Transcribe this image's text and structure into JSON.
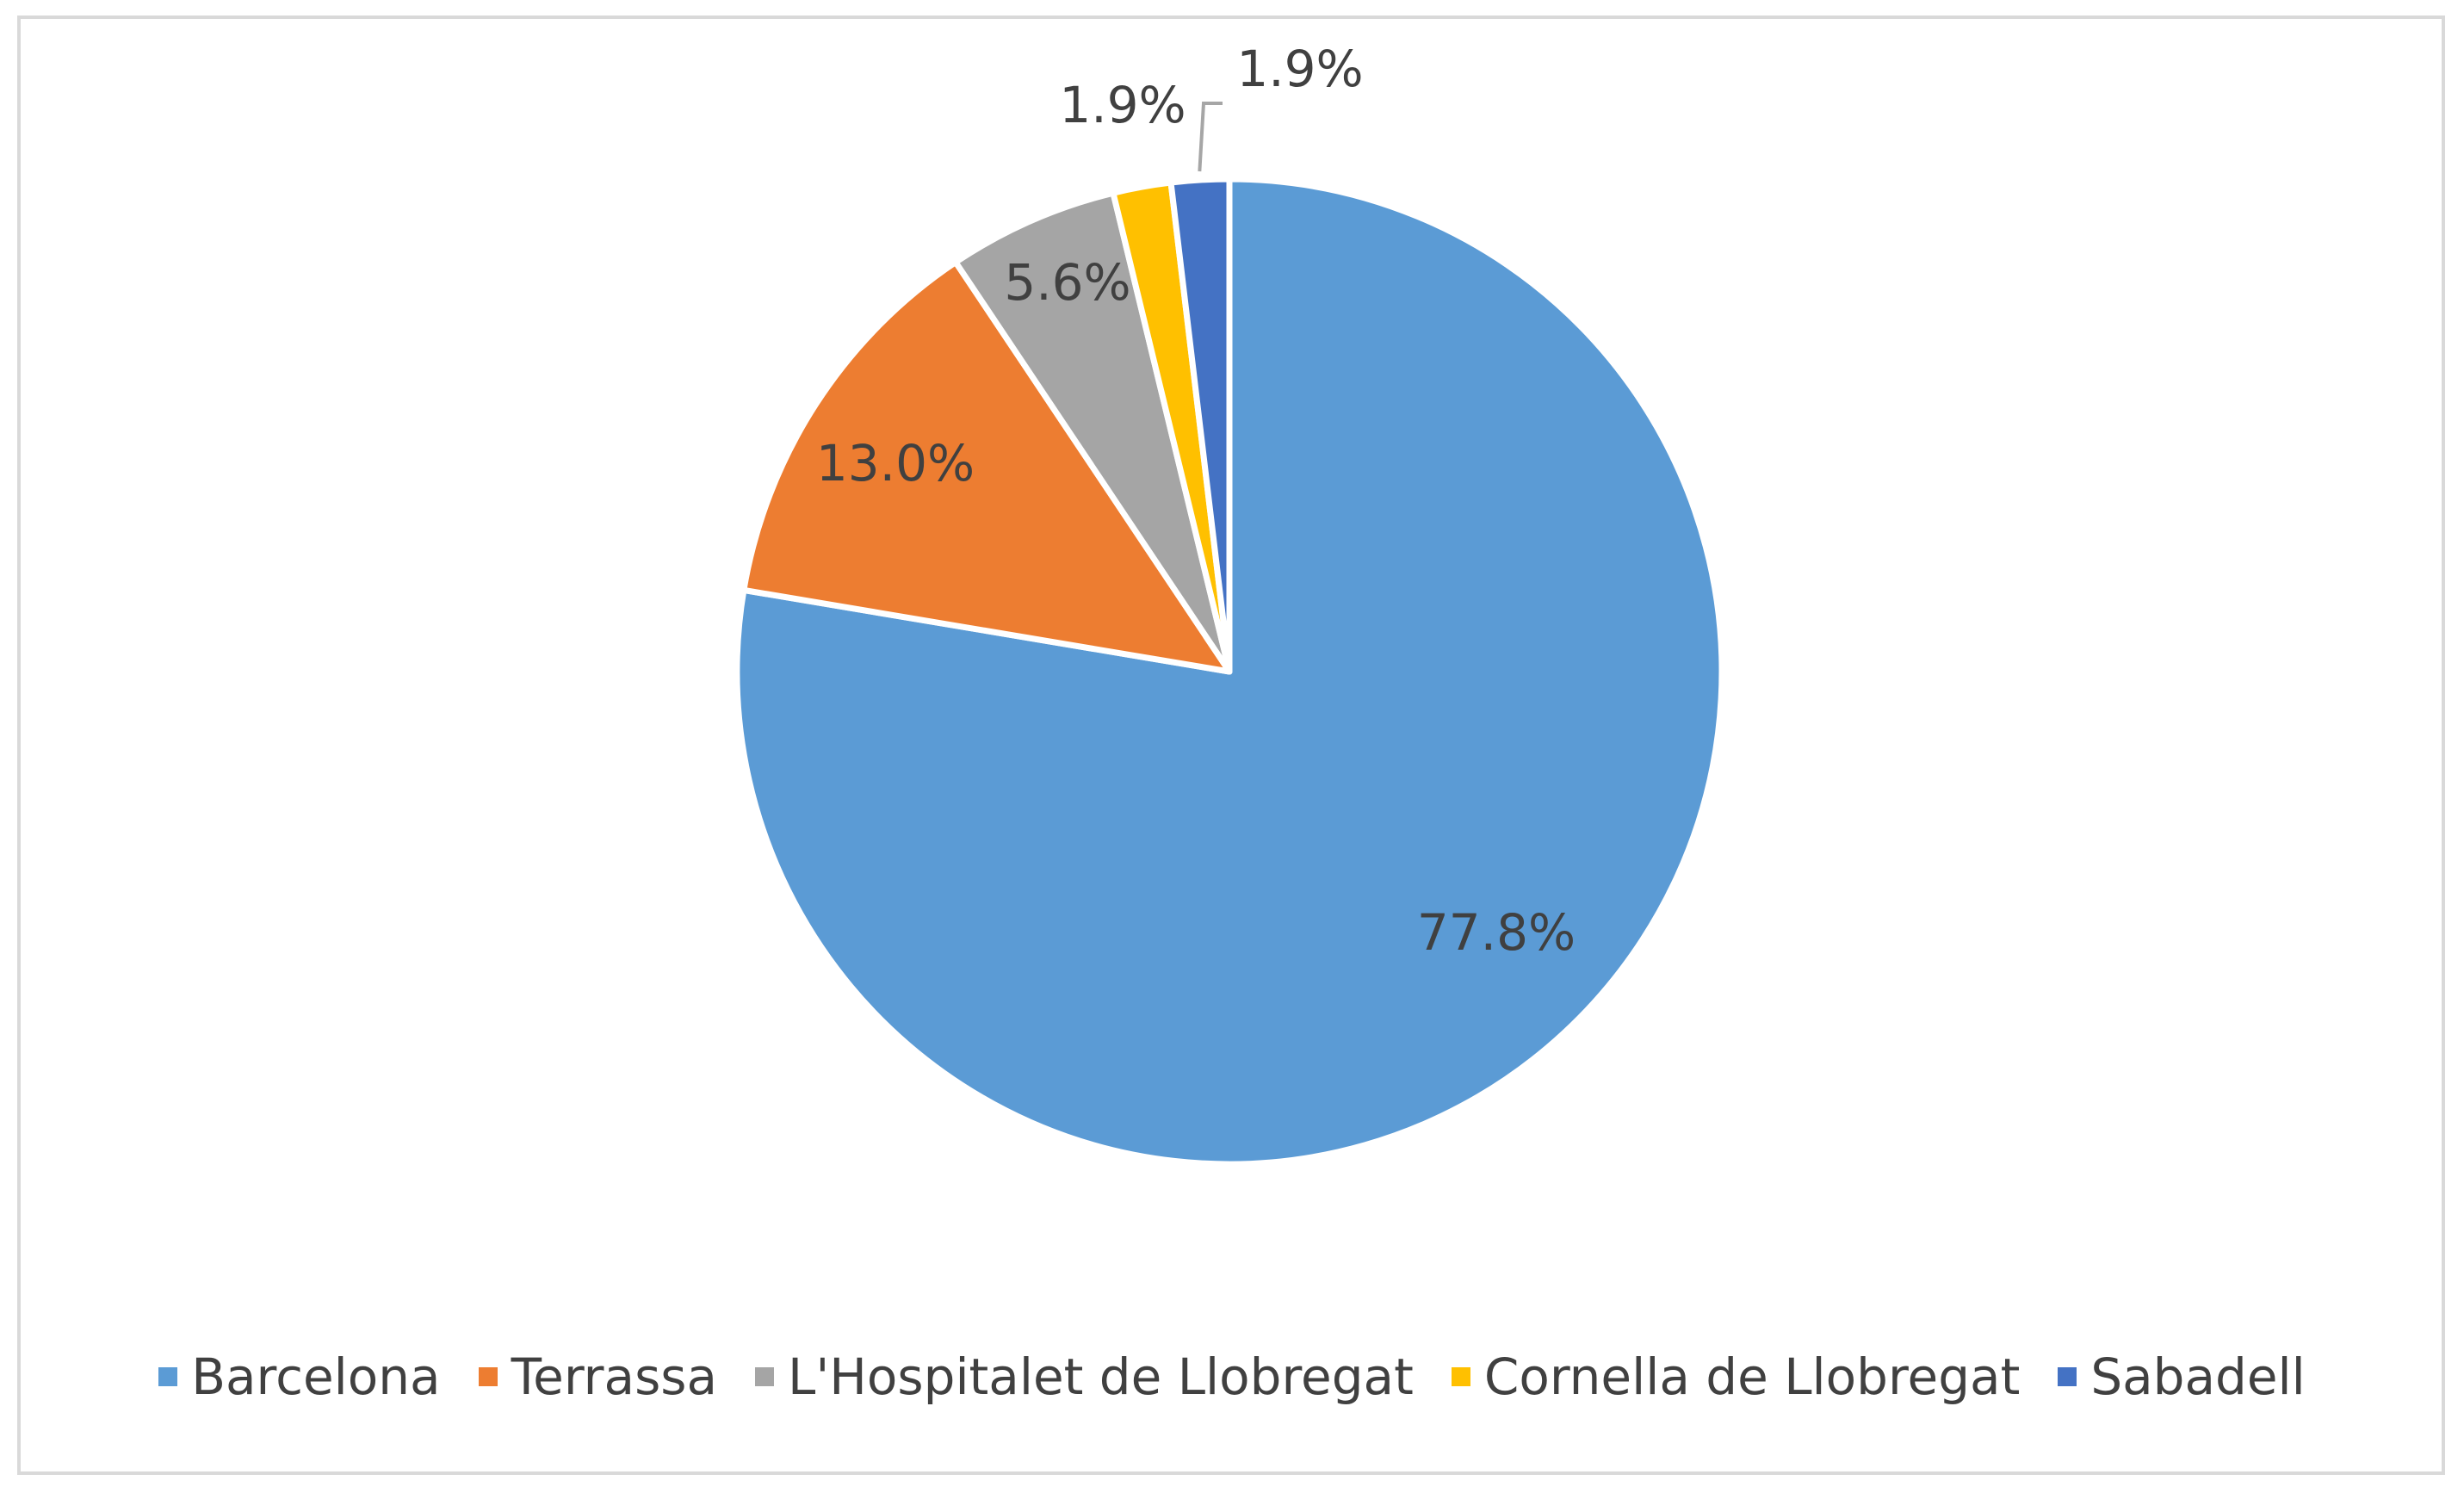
{
  "chart_data": {
    "type": "pie",
    "title": "",
    "categories": [
      "Barcelona",
      "Terrassa",
      "L'Hospitalet de Llobregat",
      "Cornella de Llobregat",
      "Sabadell"
    ],
    "values": [
      77.8,
      13.0,
      5.6,
      1.9,
      1.9
    ],
    "labels": [
      "77.8%",
      "13.0%",
      "5.6%",
      "1.9%",
      "1.9%"
    ],
    "colors": [
      "#5b9bd5",
      "#ed7d31",
      "#a5a5a5",
      "#ffc000",
      "#4472c4"
    ],
    "start_angle_deg": 0,
    "direction": "clockwise",
    "legend_position": "bottom"
  }
}
